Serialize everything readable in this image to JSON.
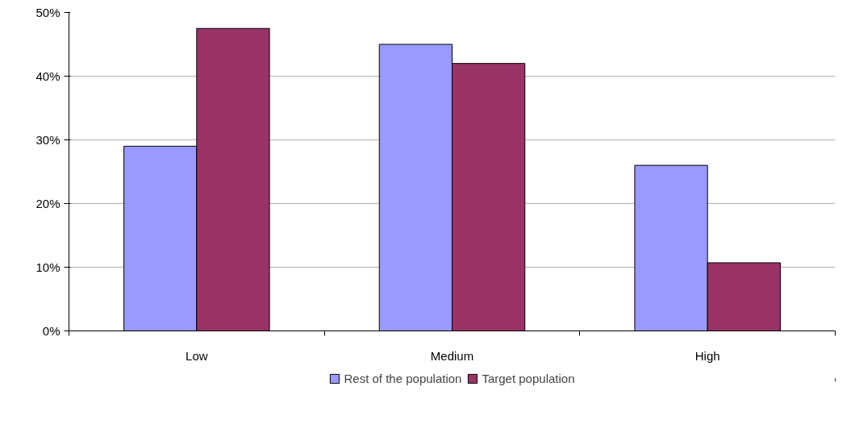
{
  "chart_data": {
    "type": "bar",
    "categories": [
      "Low",
      "Medium",
      "High"
    ],
    "series": [
      {
        "name": "Rest of the population",
        "color": "#9999ff",
        "values": [
          29,
          45,
          26
        ]
      },
      {
        "name": "Target population",
        "color": "#993366",
        "values": [
          47.5,
          42,
          10.7
        ]
      }
    ],
    "ylim": [
      0,
      50
    ],
    "yticks": [
      {
        "value": 0,
        "label": "0%"
      },
      {
        "value": 10,
        "label": "10%"
      },
      {
        "value": 20,
        "label": "20%"
      },
      {
        "value": 30,
        "label": "30%"
      },
      {
        "value": 40,
        "label": "40%"
      },
      {
        "value": 50,
        "label": "50%"
      }
    ],
    "grid": "y",
    "legend": "bottom"
  }
}
